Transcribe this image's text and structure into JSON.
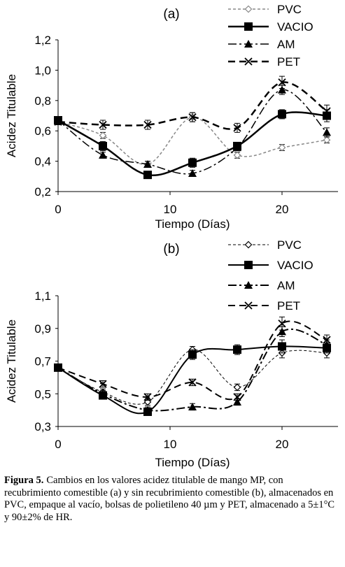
{
  "chart_data": [
    {
      "type": "line",
      "title": "(a)",
      "xlabel": "Tiempo (Días)",
      "ylabel": "Acidez Titulable",
      "xlim": [
        0,
        25
      ],
      "ylim": [
        0.2,
        1.2
      ],
      "xticks": [
        0,
        10,
        20
      ],
      "xtick_labels": [
        "0",
        "10",
        "20"
      ],
      "yticks": [
        0.2,
        0.4,
        0.6,
        0.8,
        1.0,
        1.2
      ],
      "ytick_labels": [
        "0,2",
        "0,4",
        "0,6",
        "0,8",
        "1,0",
        "1,2"
      ],
      "grid": false,
      "legend_position": "top-right",
      "x": [
        0,
        4,
        8,
        12,
        16,
        20,
        24
      ],
      "series": [
        {
          "name": "PVC",
          "marker": "diamond",
          "dash": "short",
          "color": "#888888",
          "width": 1.5,
          "values": [
            0.66,
            0.57,
            0.38,
            0.69,
            0.44,
            0.49,
            0.54
          ],
          "error": [
            0.02,
            0.02,
            0.02,
            0.03,
            0.02,
            0.02,
            0.02
          ]
        },
        {
          "name": "VACIO",
          "marker": "square",
          "dash": "solid",
          "color": "#000000",
          "width": 2.5,
          "values": [
            0.67,
            0.5,
            0.31,
            0.39,
            0.5,
            0.71,
            0.7
          ],
          "error": [
            0.02,
            0.03,
            0.02,
            0.03,
            0.02,
            0.03,
            0.04
          ]
        },
        {
          "name": "AM",
          "marker": "triangle",
          "dash": "dashdot",
          "color": "#000000",
          "width": 1.5,
          "values": [
            0.67,
            0.44,
            0.38,
            0.32,
            0.49,
            0.87,
            0.59
          ],
          "error": [
            0.02,
            0.02,
            0.02,
            0.02,
            0.02,
            0.03,
            0.03
          ]
        },
        {
          "name": "PET",
          "marker": "x",
          "dash": "long",
          "color": "#000000",
          "width": 2.5,
          "values": [
            0.66,
            0.64,
            0.64,
            0.69,
            0.62,
            0.92,
            0.73
          ],
          "error": [
            0.02,
            0.03,
            0.03,
            0.03,
            0.03,
            0.04,
            0.04
          ]
        }
      ]
    },
    {
      "type": "line",
      "title": "(b)",
      "xlabel": "Tiempo (Días)",
      "ylabel": "Acidez Titulable",
      "xlim": [
        0,
        25
      ],
      "ylim": [
        0.3,
        1.1
      ],
      "xticks": [
        0,
        10,
        20
      ],
      "xtick_labels": [
        "0",
        "10",
        "20"
      ],
      "yticks": [
        0.3,
        0.5,
        0.7,
        0.9,
        1.1
      ],
      "ytick_labels": [
        "0,3",
        "0,5",
        "0,7",
        "0,9",
        "1,1"
      ],
      "grid": false,
      "legend_position": "top-right",
      "x": [
        0,
        4,
        8,
        12,
        16,
        20,
        24
      ],
      "series": [
        {
          "name": "PVC",
          "marker": "diamond",
          "dash": "short",
          "color": "#000000",
          "width": 1,
          "values": [
            0.66,
            0.51,
            0.45,
            0.77,
            0.54,
            0.75,
            0.75
          ],
          "error": [
            0.02,
            0.02,
            0.02,
            0.02,
            0.02,
            0.03,
            0.03
          ]
        },
        {
          "name": "VACIO",
          "marker": "square",
          "dash": "solid",
          "color": "#000000",
          "width": 2,
          "values": [
            0.66,
            0.49,
            0.39,
            0.74,
            0.77,
            0.79,
            0.78
          ],
          "error": [
            0.02,
            0.02,
            0.02,
            0.03,
            0.03,
            0.04,
            0.03
          ]
        },
        {
          "name": "AM",
          "marker": "triangle",
          "dash": "dashdot",
          "color": "#000000",
          "width": 2,
          "values": [
            0.66,
            0.5,
            0.4,
            0.42,
            0.45,
            0.88,
            0.8
          ],
          "error": [
            0.02,
            0.02,
            0.02,
            0.02,
            0.02,
            0.03,
            0.03
          ]
        },
        {
          "name": "PET",
          "marker": "x",
          "dash": "long",
          "color": "#000000",
          "width": 2,
          "values": [
            0.66,
            0.56,
            0.48,
            0.57,
            0.48,
            0.93,
            0.83
          ],
          "error": [
            0.02,
            0.02,
            0.02,
            0.02,
            0.02,
            0.04,
            0.03
          ]
        }
      ]
    }
  ],
  "caption": {
    "label": "Figura 5.",
    "text": "Cambios en los valores acidez titulable de mango MP, con recubrimiento comestible (a) y sin recubrimiento comestible (b), almacenados en PVC, empaque al vacío, bolsas de polietileno 40 µm y PET, almacenado a 5±1°C y 90±2% de HR."
  }
}
